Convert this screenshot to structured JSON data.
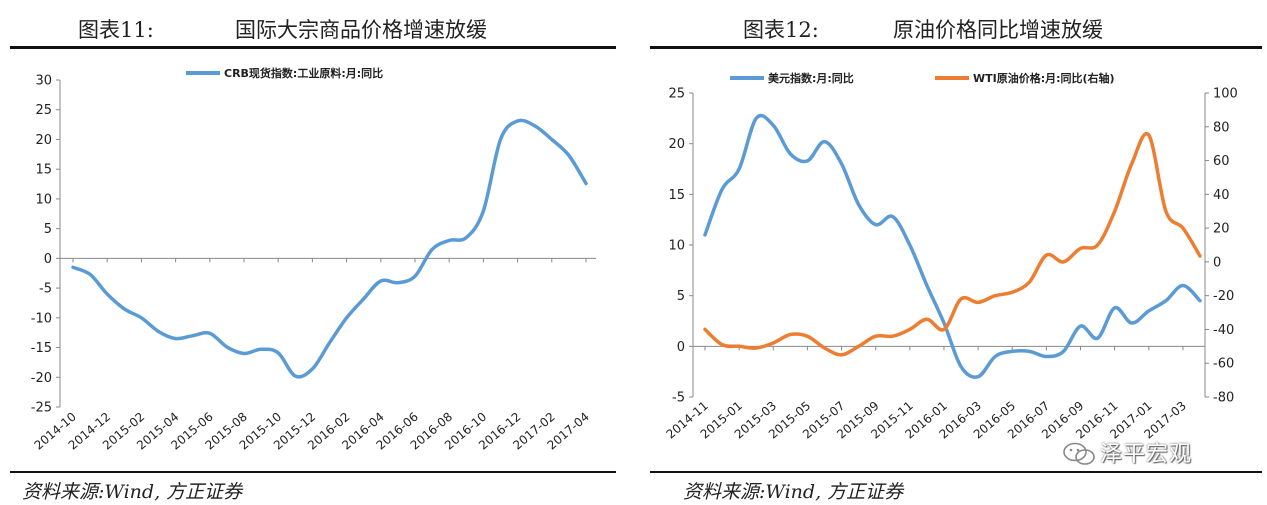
{
  "panels": [
    {
      "fig_num": "图表11:",
      "fig_title": "国际大宗商品价格增速放缓",
      "source": "资料来源:Wind, 方正证券"
    },
    {
      "fig_num": "图表12:",
      "fig_title": "原油价格同比增速放缓",
      "source": "资料来源:Wind, 方正证券"
    }
  ],
  "watermark": "泽平宏观",
  "chart_data": [
    {
      "type": "line",
      "title": "",
      "legend_placement": "top-center",
      "grid": false,
      "x_tick_labels": [
        "2014-10",
        "2014-12",
        "2015-02",
        "2015-04",
        "2015-06",
        "2015-08",
        "2015-10",
        "2015-12",
        "2016-02",
        "2016-04",
        "2016-06",
        "2016-08",
        "2016-10",
        "2016-12",
        "2017-02",
        "2017-04"
      ],
      "y_ticks": [
        30,
        25,
        20,
        15,
        10,
        5,
        0,
        -5,
        -10,
        -15,
        -20,
        -25
      ],
      "ylim": [
        -25,
        30
      ],
      "x": [
        "2014-10",
        "2014-11",
        "2014-12",
        "2015-01",
        "2015-02",
        "2015-03",
        "2015-04",
        "2015-05",
        "2015-06",
        "2015-07",
        "2015-08",
        "2015-09",
        "2015-10",
        "2015-11",
        "2015-12",
        "2016-01",
        "2016-02",
        "2016-03",
        "2016-04",
        "2016-05",
        "2016-06",
        "2016-07",
        "2016-08",
        "2016-09",
        "2016-10",
        "2016-11",
        "2016-12",
        "2017-01",
        "2017-02",
        "2017-03",
        "2017-04"
      ],
      "series": [
        {
          "name": "CRB现货指数:工业原料:月:同比",
          "color": "#5b9bd5",
          "values": [
            -1.5,
            -2.7,
            -6.0,
            -8.5,
            -10.0,
            -12.3,
            -13.5,
            -13.0,
            -12.6,
            -14.9,
            -16.0,
            -15.3,
            -15.9,
            -19.8,
            -18.6,
            -14.2,
            -10.0,
            -6.8,
            -3.8,
            -4.1,
            -3.0,
            1.5,
            3.0,
            3.5,
            8.0,
            20.0,
            23.1,
            22.3,
            20.0,
            17.3,
            12.6
          ]
        }
      ]
    },
    {
      "type": "line",
      "title": "",
      "legend_placement": "top-center",
      "grid": false,
      "x_tick_labels": [
        "2014-11",
        "2015-01",
        "2015-03",
        "2015-05",
        "2015-07",
        "2015-09",
        "2015-11",
        "2016-01",
        "2016-03",
        "2016-05",
        "2016-07",
        "2016-09",
        "2016-11",
        "2017-01",
        "2017-03"
      ],
      "y_ticks_left": [
        25,
        20,
        15,
        10,
        5,
        0,
        -5
      ],
      "ylim_left": [
        -5,
        25
      ],
      "y_ticks_right": [
        100,
        80,
        60,
        40,
        20,
        0,
        -20,
        -40,
        -60,
        -80
      ],
      "ylim_right": [
        -80,
        100
      ],
      "x": [
        "2014-11",
        "2014-12",
        "2015-01",
        "2015-02",
        "2015-03",
        "2015-04",
        "2015-05",
        "2015-06",
        "2015-07",
        "2015-08",
        "2015-09",
        "2015-10",
        "2015-11",
        "2015-12",
        "2016-01",
        "2016-02",
        "2016-03",
        "2016-04",
        "2016-05",
        "2016-06",
        "2016-07",
        "2016-08",
        "2016-09",
        "2016-10",
        "2016-11",
        "2016-12",
        "2017-01",
        "2017-02",
        "2017-03",
        "2017-04"
      ],
      "series": [
        {
          "name": "美元指数:月:同比",
          "axis": "left",
          "color": "#5b9bd5",
          "values": [
            11.0,
            15.5,
            17.5,
            22.5,
            21.8,
            19.0,
            18.3,
            20.2,
            18.0,
            14.0,
            12.0,
            12.8,
            10.0,
            6.0,
            2.3,
            -2.0,
            -3.0,
            -1.0,
            -0.5,
            -0.5,
            -1.0,
            -0.5,
            2.0,
            0.8,
            3.8,
            2.3,
            3.5,
            4.5,
            6.0,
            4.5
          ]
        },
        {
          "name": "WTI原油价格:月:同比(右轴)",
          "axis": "right",
          "color": "#ed7d31",
          "values": [
            -40.0,
            -49.0,
            -50.0,
            -51.0,
            -48.0,
            -43.0,
            -44.0,
            -51.0,
            -55.0,
            -50.0,
            -44.0,
            -44.0,
            -40.0,
            -34.0,
            -40.0,
            -22.0,
            -24.0,
            -20.0,
            -18.0,
            -12.0,
            4.0,
            0.0,
            8.0,
            10.0,
            30.0,
            58.0,
            75.0,
            30.0,
            20.0,
            3.5
          ]
        }
      ]
    }
  ]
}
